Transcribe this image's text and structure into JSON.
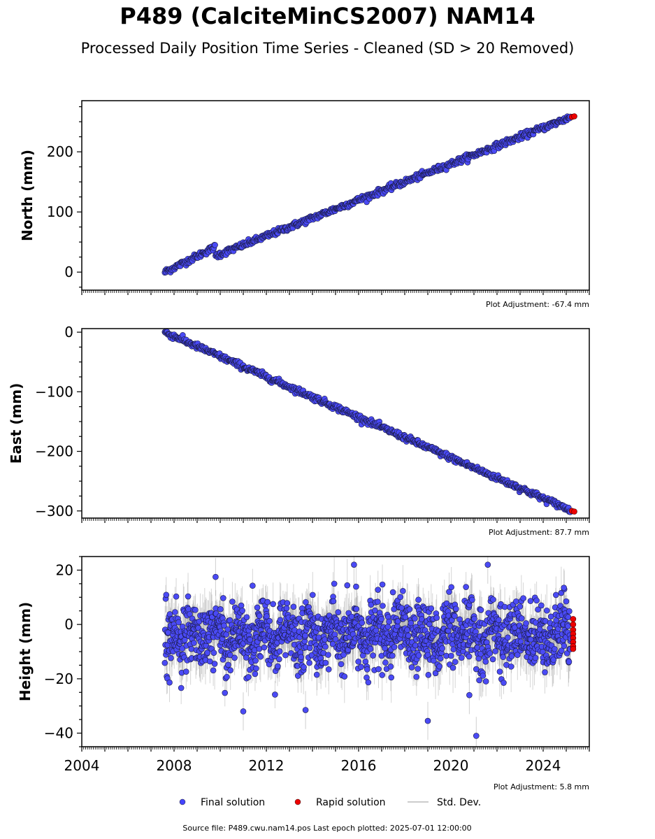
{
  "figure": {
    "title": "P489 (CalciteMinCS2007) NAM14",
    "subtitle": "Processed Daily Position Time Series - Cleaned (SD > 20 Removed)",
    "footer": "Source file: P489.cwu.nam14.pos  Last epoch plotted: 2025-07-01 12:00:00"
  },
  "legend": {
    "items": [
      {
        "label": "Final solution",
        "color": "#4444ff",
        "kind": "marker"
      },
      {
        "label": "Rapid solution",
        "color": "#ee0000",
        "kind": "marker"
      },
      {
        "label": "Std. Dev.",
        "color": "#bbbbbb",
        "kind": "line"
      }
    ]
  },
  "chart_data": [
    {
      "type": "scatter",
      "ylabel": "North (mm)",
      "xlim": [
        2004.0,
        2026.0
      ],
      "ylim": [
        -30,
        285
      ],
      "yticks": [
        0,
        100,
        200
      ],
      "xtick_labels_shown": false,
      "adjustment": "Plot Adjustment: -67.4 mm",
      "series": [
        {
          "name": "Final solution",
          "segments": [
            {
              "x": [
                2007.6,
                2009.8
              ],
              "y": [
                0,
                42
              ]
            },
            {
              "x": [
                2009.8,
                2025.2
              ],
              "y": [
                27,
                258
              ]
            }
          ],
          "scatter_mm": 2.5
        },
        {
          "name": "Rapid solution",
          "x": [
            2025.25,
            2025.35
          ],
          "y": [
            258,
            259
          ]
        }
      ]
    },
    {
      "type": "scatter",
      "ylabel": "East (mm)",
      "xlim": [
        2004.0,
        2026.0
      ],
      "ylim": [
        -312,
        6
      ],
      "yticks": [
        0,
        -100,
        -200,
        -300
      ],
      "xtick_labels_shown": false,
      "adjustment": "Plot Adjustment: 87.7 mm",
      "series": [
        {
          "name": "Final solution",
          "segments": [
            {
              "x": [
                2007.6,
                2025.2
              ],
              "y": [
                0,
                -299
              ]
            }
          ],
          "scatter_mm": 2.5
        },
        {
          "name": "Rapid solution",
          "x": [
            2025.25,
            2025.35
          ],
          "y": [
            -300,
            -301
          ]
        }
      ]
    },
    {
      "type": "scatter",
      "ylabel": "Height (mm)",
      "xlim": [
        2004.0,
        2026.0
      ],
      "ylim": [
        -45,
        25
      ],
      "yticks": [
        20,
        0,
        -20,
        -40
      ],
      "xticks": [
        2004,
        2008,
        2012,
        2016,
        2020,
        2024
      ],
      "xtick_labels_shown": true,
      "adjustment": "Plot Adjustment: 5.8 mm",
      "series": [
        {
          "name": "Final solution",
          "x_range": [
            2007.6,
            2025.2
          ],
          "mean_mm": -4,
          "scatter_sd_mm": 6,
          "outliers": [
            {
              "x": 2009.8,
              "y": 17.5
            },
            {
              "x": 2015.8,
              "y": 22
            },
            {
              "x": 2021.6,
              "y": 22
            },
            {
              "x": 2019.0,
              "y": -35.5
            },
            {
              "x": 2021.1,
              "y": -41
            },
            {
              "x": 2013.7,
              "y": -31.5
            },
            {
              "x": 2020.8,
              "y": -26
            },
            {
              "x": 2011.0,
              "y": -32
            },
            {
              "x": 2024.9,
              "y": 13.5
            }
          ]
        },
        {
          "name": "Rapid solution",
          "x": [
            2025.3,
            2025.3,
            2025.3,
            2025.3,
            2025.3,
            2025.3,
            2025.3,
            2025.3
          ],
          "y": [
            2,
            0,
            -2,
            -3.5,
            -5,
            -6.5,
            -8,
            -9
          ]
        }
      ]
    }
  ]
}
